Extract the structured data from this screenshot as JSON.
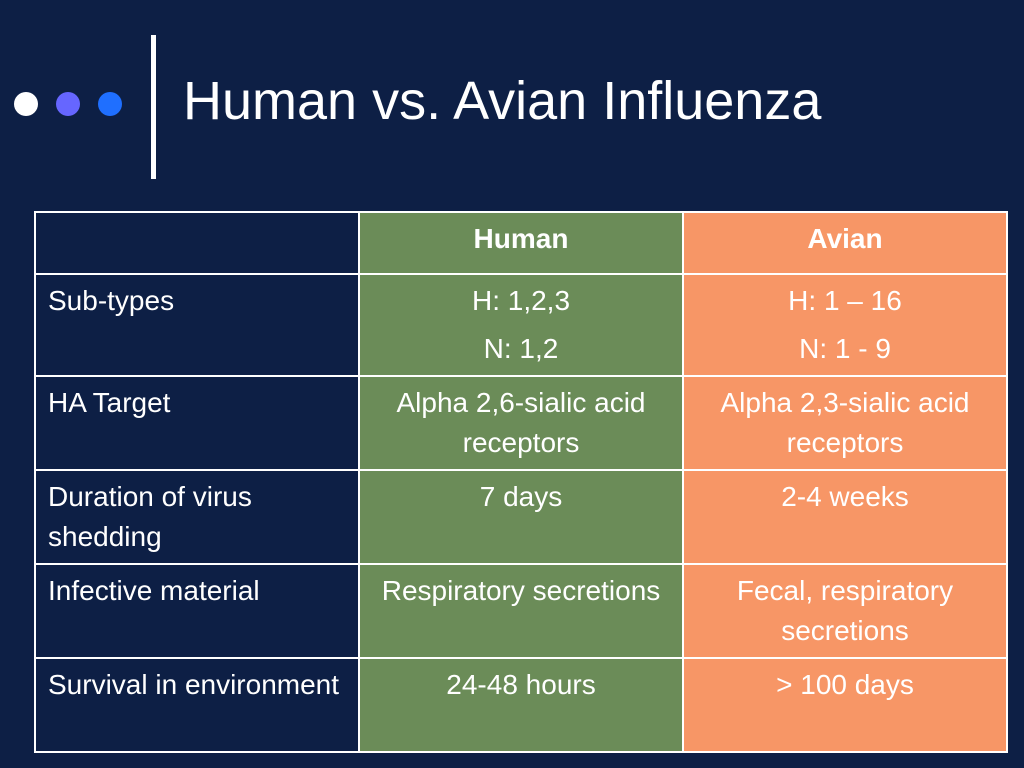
{
  "slide": {
    "title": "Human vs. Avian Influenza",
    "bullet_colors": [
      "#ffffff",
      "#6666ff",
      "#1f6fff"
    ]
  },
  "table": {
    "header": {
      "corner": "",
      "human": "Human",
      "avian": "Avian"
    },
    "rows": [
      {
        "label": "Sub-types",
        "human": [
          "H: 1,2,3",
          "N: 1,2"
        ],
        "avian": [
          "H: 1 – 16",
          "N: 1 - 9"
        ]
      },
      {
        "label": "HA Target",
        "human": "Alpha 2,6-sialic acid receptors",
        "avian": "Alpha 2,3-sialic acid receptors"
      },
      {
        "label": "Duration of virus shedding",
        "human": "7 days",
        "avian": "2-4 weeks"
      },
      {
        "label": "Infective material",
        "human": "Respiratory secretions",
        "avian": "Fecal, respiratory secretions"
      },
      {
        "label": "Survival in environment",
        "human": "24-48 hours",
        "avian": "> 100 days"
      }
    ]
  },
  "colors": {
    "background": "#0d1f45",
    "human_column": "#6b8c58",
    "avian_column": "#f79666",
    "border": "#ffffff"
  }
}
